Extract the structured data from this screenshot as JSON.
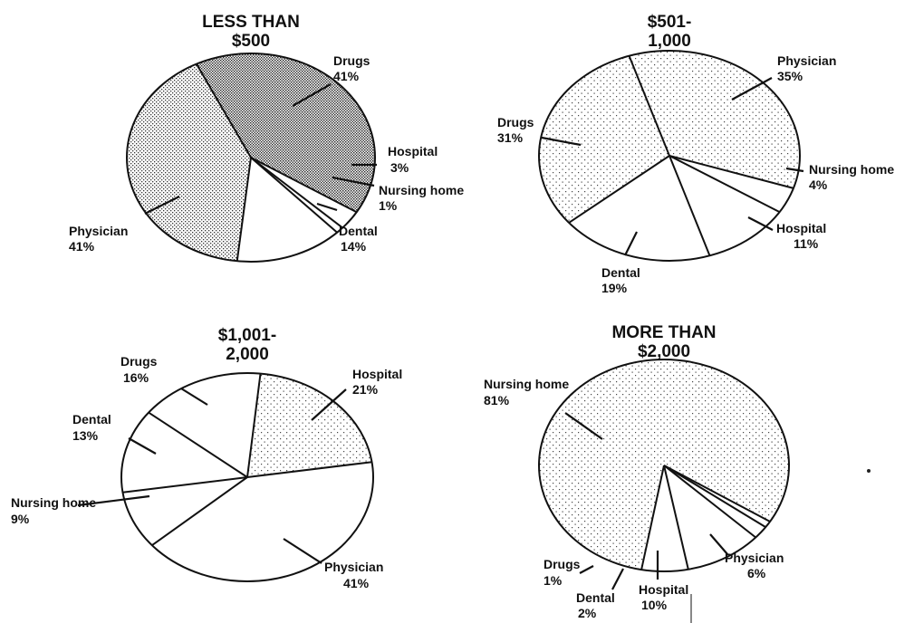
{
  "chart_data": [
    {
      "type": "pie",
      "title": "LESS THAN $500",
      "title_lines": [
        "LESS THAN",
        "$500"
      ],
      "slices": [
        {
          "label": "Drugs",
          "value": 41,
          "value_label": "41%",
          "shade": "dark"
        },
        {
          "label": "Hospital",
          "value": 3,
          "value_label": "3%",
          "shade": "none"
        },
        {
          "label": "Nursing home",
          "value": 1,
          "value_label": "1%",
          "shade": "none"
        },
        {
          "label": "Dental",
          "value": 14,
          "value_label": "14%",
          "shade": "none"
        },
        {
          "label": "Physician",
          "value": 41,
          "value_label": "41%",
          "shade": "medium"
        }
      ]
    },
    {
      "type": "pie",
      "title": "$501- 1,000",
      "title_lines": [
        "$501-",
        "1,000"
      ],
      "slices": [
        {
          "label": "Physician",
          "value": 35,
          "value_label": "35%",
          "shade": "light"
        },
        {
          "label": "Nursing home",
          "value": 4,
          "value_label": "4%",
          "shade": "none"
        },
        {
          "label": "Hospital",
          "value": 11,
          "value_label": "11%",
          "shade": "none"
        },
        {
          "label": "Dental",
          "value": 19,
          "value_label": "19%",
          "shade": "none"
        },
        {
          "label": "Drugs",
          "value": 31,
          "value_label": "31%",
          "shade": "light"
        }
      ]
    },
    {
      "type": "pie",
      "title": "$1,001- 2,000",
      "title_lines": [
        "$1,001-",
        "2,000"
      ],
      "slices": [
        {
          "label": "Hospital",
          "value": 21,
          "value_label": "21%",
          "shade": "light"
        },
        {
          "label": "Physician",
          "value": 41,
          "value_label": "41%",
          "shade": "none"
        },
        {
          "label": "Nursing home",
          "value": 9,
          "value_label": "9%",
          "shade": "none"
        },
        {
          "label": "Dental",
          "value": 13,
          "value_label": "13%",
          "shade": "none"
        },
        {
          "label": "Drugs",
          "value": 16,
          "value_label": "16%",
          "shade": "none"
        }
      ]
    },
    {
      "type": "pie",
      "title": "MORE THAN $2,000",
      "title_lines": [
        "MORE THAN",
        "$2,000"
      ],
      "slices": [
        {
          "label": "Nursing home",
          "value": 81,
          "value_label": "81%",
          "shade": "light"
        },
        {
          "label": "Physician",
          "value": 6,
          "value_label": "6%",
          "shade": "none"
        },
        {
          "label": "Hospital",
          "value": 10,
          "value_label": "10%",
          "shade": "none"
        },
        {
          "label": "Dental",
          "value": 2,
          "value_label": "2%",
          "shade": "none"
        },
        {
          "label": "Drugs",
          "value": 1,
          "value_label": "1%",
          "shade": "none"
        }
      ]
    }
  ]
}
